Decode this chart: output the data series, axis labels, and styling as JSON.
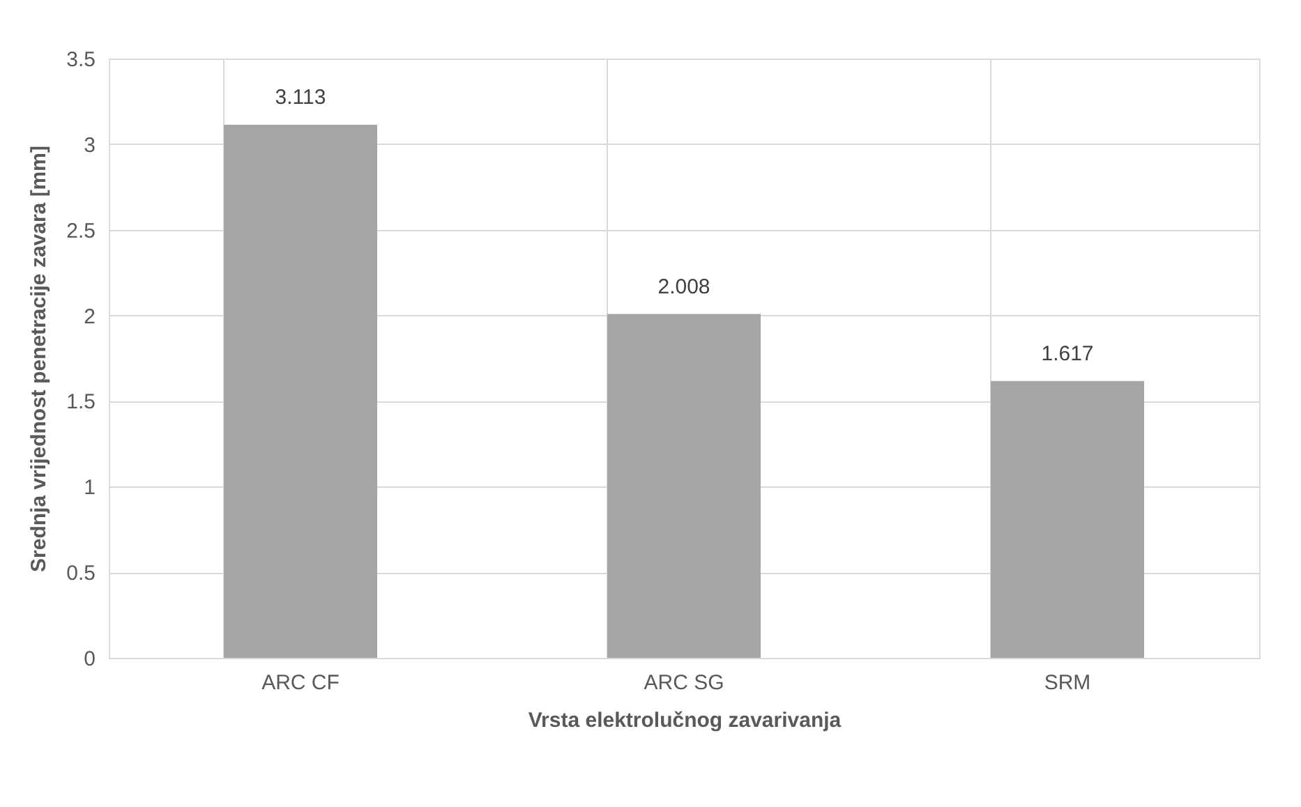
{
  "chart_data": {
    "type": "bar",
    "xlabel": "Vrsta elektrolučnog zavarivanja",
    "ylabel": "Srednja vrijednost penetracije zavara [mm]",
    "categories": [
      "ARC CF",
      "ARC SG",
      "SRM"
    ],
    "values": [
      3.113,
      2.008,
      1.617
    ],
    "color": "#a5a5a5",
    "ylim": [
      0,
      3.5
    ],
    "yticks": [
      0,
      0.5,
      1,
      1.5,
      2,
      2.5,
      3,
      3.5
    ],
    "grid": true,
    "data_labels": true
  }
}
